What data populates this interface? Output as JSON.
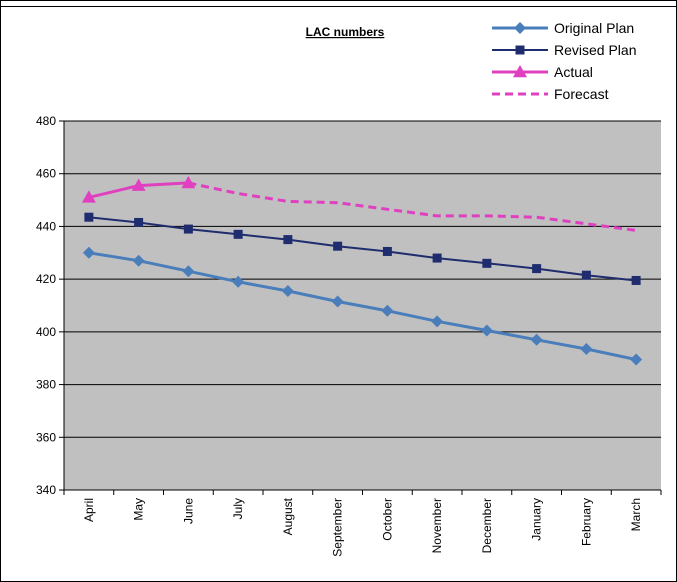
{
  "chart_data": {
    "type": "line",
    "title": "LAC numbers",
    "categories": [
      "April",
      "May",
      "June",
      "July",
      "August",
      "September",
      "October",
      "November",
      "December",
      "January",
      "February",
      "March"
    ],
    "ylim": [
      340,
      480
    ],
    "yticks": [
      340,
      360,
      380,
      400,
      420,
      440,
      460,
      480
    ],
    "grid": "horizontal",
    "legend_position": "top-right",
    "plot_background": "#c0c0c0",
    "series": [
      {
        "name": "Original Plan",
        "color": "#4a7ebb",
        "marker": "diamond",
        "style": "solid",
        "values": [
          430,
          427,
          423,
          419,
          415.5,
          411.5,
          408,
          404,
          400.5,
          397,
          393.5,
          389.5
        ]
      },
      {
        "name": "Revised Plan",
        "color": "#1f2d6e",
        "marker": "square",
        "style": "solid",
        "values": [
          443.5,
          441.5,
          439,
          437,
          435,
          432.5,
          430.5,
          428,
          426,
          424,
          421.5,
          419.5
        ]
      },
      {
        "name": "Actual",
        "color": "#e040c0",
        "marker": "triangle",
        "style": "solid",
        "values": [
          451,
          455.5,
          456.5,
          null,
          null,
          null,
          null,
          null,
          null,
          null,
          null,
          null
        ]
      },
      {
        "name": "Forecast",
        "color": "#e040c0",
        "marker": "none",
        "style": "dashed",
        "values": [
          null,
          null,
          456.5,
          452.5,
          449.5,
          449,
          446.5,
          444,
          444,
          443.5,
          441,
          438.5
        ]
      }
    ]
  }
}
